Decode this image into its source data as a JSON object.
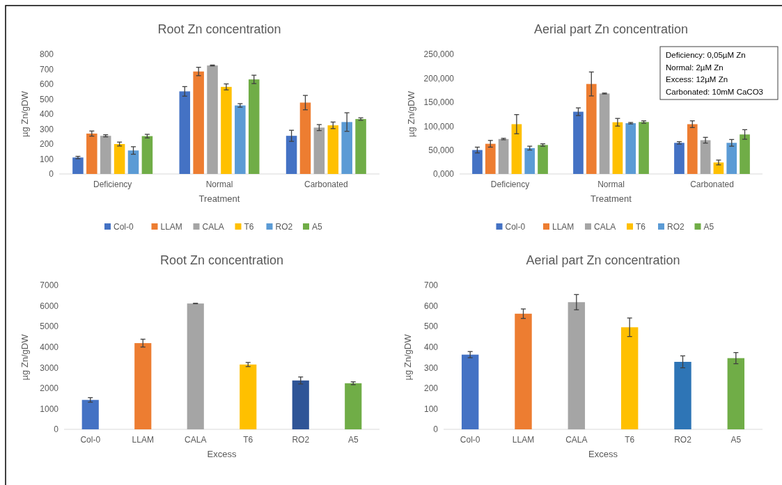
{
  "chart_data": [
    {
      "type": "bar",
      "title": "Root Zn concentration",
      "xlabel": "Treatment",
      "ylabel": "µg Zn/gDW",
      "categories": [
        "Deficiency",
        "Normal",
        "Carbonated"
      ],
      "ylim": [
        0,
        800
      ],
      "yticks": [
        0,
        100,
        200,
        300,
        400,
        500,
        600,
        700,
        800
      ],
      "legend": "bottom",
      "grid": false,
      "series": [
        {
          "name": "Col-0",
          "color": "#4472c4",
          "values": [
            110,
            552,
            255
          ],
          "errors": [
            8,
            32,
            37
          ]
        },
        {
          "name": "LLAM",
          "color": "#ed7d31",
          "values": [
            270,
            685,
            477
          ],
          "errors": [
            17,
            28,
            48
          ]
        },
        {
          "name": "CALA",
          "color": "#a5a5a5",
          "values": [
            255,
            725,
            310
          ],
          "errors": [
            7,
            3,
            20
          ]
        },
        {
          "name": "T6",
          "color": "#ffc000",
          "values": [
            200,
            582,
            325
          ],
          "errors": [
            13,
            20,
            22
          ]
        },
        {
          "name": "RO2",
          "color": "#5b9bd5",
          "values": [
            157,
            458,
            347
          ],
          "errors": [
            25,
            12,
            62
          ]
        },
        {
          "name": "A5",
          "color": "#70ad47",
          "values": [
            253,
            632,
            367
          ],
          "errors": [
            12,
            28,
            8
          ]
        }
      ]
    },
    {
      "type": "bar",
      "title": "Aerial part Zn concentration",
      "xlabel": "Treatment",
      "ylabel": "µg Zn/gDW",
      "categories": [
        "Deficiency",
        "Normal",
        "Carbonated"
      ],
      "ylim": [
        0,
        250
      ],
      "yticks": [
        {
          "value": 0,
          "label": "0,000"
        },
        {
          "value": 50,
          "label": "50,000"
        },
        {
          "value": 100,
          "label": "100,000"
        },
        {
          "value": 150,
          "label": "150,000"
        },
        {
          "value": 200,
          "label": "200,000"
        },
        {
          "value": 250,
          "label": "250,000"
        }
      ],
      "legend": "bottom",
      "grid": false,
      "annotations": [
        "Deficiency: 0,05µM Zn",
        "Normal: 2µM Zn",
        "Excess: 12µM Zn",
        "Carbonated: 10mM CaCO3"
      ],
      "series": [
        {
          "name": "Col-0",
          "color": "#4472c4",
          "values": [
            50,
            130,
            65
          ],
          "errors": [
            6,
            8,
            2.5
          ]
        },
        {
          "name": "LLAM",
          "color": "#ed7d31",
          "values": [
            63,
            188,
            104
          ],
          "errors": [
            7,
            25,
            7
          ]
        },
        {
          "name": "CALA",
          "color": "#a5a5a5",
          "values": [
            73,
            168,
            70.5
          ],
          "errors": [
            1.5,
            1,
            6
          ]
        },
        {
          "name": "T6",
          "color": "#ffc000",
          "values": [
            104,
            108,
            24
          ],
          "errors": [
            20,
            8,
            5
          ]
        },
        {
          "name": "RO2",
          "color": "#5b9bd5",
          "values": [
            54,
            106,
            65
          ],
          "errors": [
            4,
            1.5,
            7
          ]
        },
        {
          "name": "A5",
          "color": "#70ad47",
          "values": [
            60.5,
            108.5,
            82.5
          ],
          "errors": [
            2.5,
            2.5,
            10
          ]
        }
      ]
    },
    {
      "type": "bar",
      "title": "Root Zn concentration",
      "xlabel": "Excess",
      "ylabel": "µg Zn/gDW",
      "categories": [
        "Col-0",
        "LLAM",
        "CALA",
        "T6",
        "RO2",
        "A5"
      ],
      "ylim": [
        0,
        7000
      ],
      "yticks": [
        0,
        1000,
        2000,
        3000,
        4000,
        5000,
        6000,
        7000
      ],
      "grid": false,
      "values": [
        1430,
        4190,
        6115,
        3150,
        2375,
        2240
      ],
      "errors": [
        110,
        190,
        10,
        100,
        170,
        70
      ],
      "colors": [
        "#4472c4",
        "#ed7d31",
        "#a5a5a5",
        "#ffc000",
        "#2f5597",
        "#70ad47"
      ]
    },
    {
      "type": "bar",
      "title": "Aerial part Zn concentration",
      "xlabel": "Excess",
      "ylabel": "µg Zn/gDW",
      "categories": [
        "Col-0",
        "LLAM",
        "CALA",
        "T6",
        "RO2",
        "A5"
      ],
      "ylim": [
        0,
        700
      ],
      "yticks": [
        0,
        100,
        200,
        300,
        400,
        500,
        600,
        700
      ],
      "grid": false,
      "values": [
        363,
        562,
        618,
        496,
        328,
        346
      ],
      "errors": [
        15,
        23,
        37,
        45,
        29,
        27
      ],
      "colors": [
        "#4472c4",
        "#ed7d31",
        "#a5a5a5",
        "#ffc000",
        "#2e75b6",
        "#70ad47"
      ]
    }
  ]
}
